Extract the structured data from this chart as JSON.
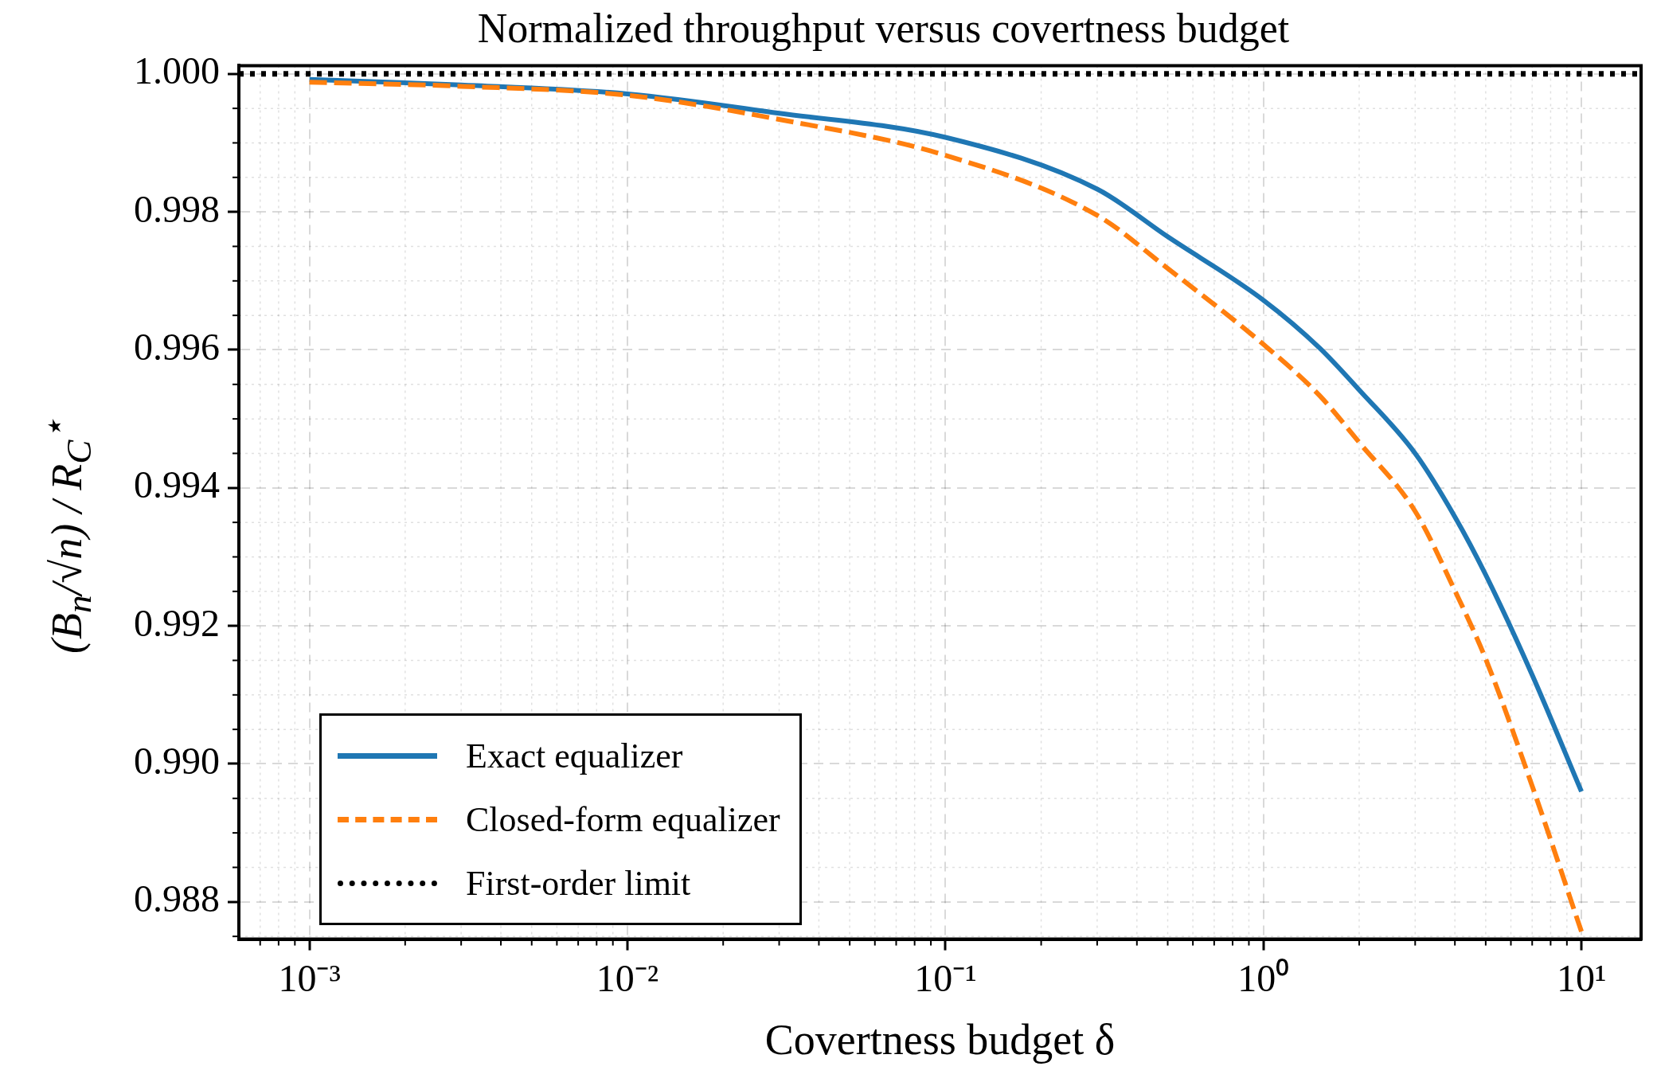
{
  "chart_data": {
    "type": "line",
    "title": "Normalized throughput versus covertness budget",
    "xlabel": "Covertness budget δ",
    "ylabel": "(B$_{n}$/√n) / R$_{C}$$^{⋆}$",
    "log": "x",
    "x": [
      0.001,
      0.003,
      0.01,
      0.03,
      0.1,
      0.3,
      0.5,
      1,
      1.5,
      2,
      3,
      4,
      5,
      7,
      10
    ],
    "series": [
      {
        "name": "Exact equalizer",
        "color": "#1f77b4",
        "line_style": "solid",
        "values": [
          0.99992,
          0.99984,
          0.99971,
          0.99943,
          0.99908,
          0.99833,
          0.99764,
          0.99672,
          0.99603,
          0.99542,
          0.9945,
          0.99358,
          0.99274,
          0.99129,
          0.9896
        ]
      },
      {
        "name": "Closed-form equalizer",
        "color": "#ff7f0e",
        "line_style": "dashed",
        "values": [
          0.99988,
          0.99982,
          0.99969,
          0.99934,
          0.99882,
          0.99795,
          0.99718,
          0.99608,
          0.99534,
          0.99466,
          0.99366,
          0.99251,
          0.99152,
          0.98968,
          0.98757
        ]
      }
    ],
    "ref_lines": [
      {
        "axis": "y",
        "value": 1,
        "label": "First-order limit",
        "color": "#000000",
        "line_style": "dotted"
      }
    ],
    "xlim": [
      0.00063,
      15.4
    ],
    "ylim": [
      0.98746,
      1.00012
    ],
    "xticks": [
      {
        "value": 0.001,
        "label": "10⁻³"
      },
      {
        "value": 0.01,
        "label": "10⁻²"
      },
      {
        "value": 0.1,
        "label": "10⁻¹"
      },
      {
        "value": 1,
        "label": "10⁰"
      },
      {
        "value": 10,
        "label": "10¹"
      }
    ],
    "yticks": [
      {
        "value": 0.988,
        "label": "0.988"
      },
      {
        "value": 0.99,
        "label": "0.990"
      },
      {
        "value": 0.992,
        "label": "0.992"
      },
      {
        "value": 0.994,
        "label": "0.994"
      },
      {
        "value": 0.996,
        "label": "0.996"
      },
      {
        "value": 0.998,
        "label": "0.998"
      },
      {
        "value": 1,
        "label": "1.000"
      }
    ],
    "grid": true,
    "legend": "bottom left",
    "marker": "none"
  }
}
